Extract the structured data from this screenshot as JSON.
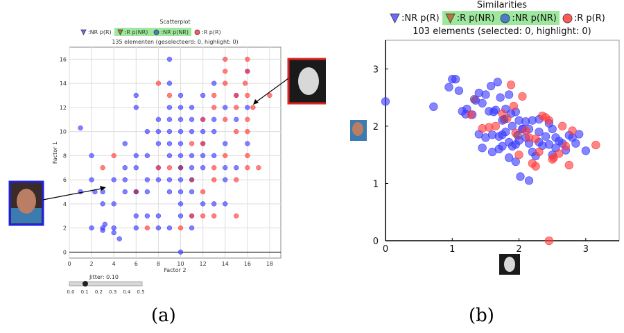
{
  "panels": {
    "a": {
      "caption": "(a)",
      "title": "Scatterplot",
      "subtitle": "135 elementen (geselecteerd: 0, highlight: 0)",
      "legend": [
        {
          "label": ":NR p(R)",
          "marker": "triangle-down",
          "color": "#6a6aff",
          "highlight": false
        },
        {
          "label": ":R p(NR)",
          "marker": "triangle-down",
          "color": "#b8773e",
          "highlight": true
        },
        {
          "label": ":NR p(NR)",
          "marker": "circle",
          "color": "#4c7cc8",
          "highlight": true
        },
        {
          "label": ":R p(R)",
          "marker": "circle",
          "color": "#ff5a5a",
          "highlight": false
        }
      ],
      "jitter_label": "Jitter: 0.10",
      "jitter_value": 0.1,
      "jitter_ticks": [
        "0.0",
        "0.1",
        "0.2",
        "0.3",
        "0.4",
        "0.5"
      ]
    },
    "b": {
      "caption": "(b)",
      "title": "Similarities",
      "subtitle": "103 elements (selected: 0, highlight: 0)",
      "legend": [
        {
          "label": ":NR p(R)",
          "marker": "triangle-down",
          "color": "#6a6aff",
          "highlight": false
        },
        {
          "label": ":R p(NR)",
          "marker": "triangle-down",
          "color": "#b8773e",
          "highlight": true
        },
        {
          "label": ":NR p(NR)",
          "marker": "circle",
          "color": "#4c7cc8",
          "highlight": true
        },
        {
          "label": ":R p(R)",
          "marker": "circle",
          "color": "#ff5a5a",
          "highlight": false
        }
      ]
    }
  },
  "colors": {
    "blue": "#3a3aff",
    "red": "#ff3a3a",
    "darkred": "#c03030",
    "purple": "#7a3a8a",
    "face_a_border": "#2222dd",
    "face_b_border": "#dd2222"
  },
  "chart_data": [
    {
      "type": "scatter",
      "title": "Scatterplot",
      "xlabel": "Factor 2",
      "ylabel": "Factor 1",
      "xlim": [
        0,
        19
      ],
      "ylim": [
        -0.5,
        17
      ],
      "xticks": [
        0,
        2,
        4,
        6,
        8,
        10,
        12,
        14,
        16,
        18
      ],
      "yticks": [
        0,
        2,
        4,
        6,
        8,
        10,
        12,
        14,
        16
      ],
      "grid": true,
      "series": [
        {
          "color": "blue",
          "points": [
            [
              1,
              10.3
            ],
            [
              1,
              5
            ],
            [
              2,
              8
            ],
            [
              2,
              6
            ],
            [
              2,
              2
            ],
            [
              2.3,
              5
            ],
            [
              3,
              5
            ],
            [
              3,
              4
            ],
            [
              3,
              2
            ],
            [
              3,
              1.8
            ],
            [
              3.2,
              2.3
            ],
            [
              4,
              6
            ],
            [
              4,
              4
            ],
            [
              4,
              2
            ],
            [
              4,
              1.6
            ],
            [
              4.5,
              1.1
            ],
            [
              5,
              9
            ],
            [
              5,
              7
            ],
            [
              5,
              6
            ],
            [
              5,
              5
            ],
            [
              6,
              13
            ],
            [
              6,
              12
            ],
            [
              6,
              8
            ],
            [
              6,
              7
            ],
            [
              6,
              5
            ],
            [
              6,
              3
            ],
            [
              6,
              2
            ],
            [
              7,
              10
            ],
            [
              7,
              8
            ],
            [
              7,
              6
            ],
            [
              7,
              5
            ],
            [
              7,
              3
            ],
            [
              8,
              11
            ],
            [
              8,
              10
            ],
            [
              8,
              9
            ],
            [
              8,
              7
            ],
            [
              8,
              6
            ],
            [
              8,
              3
            ],
            [
              8,
              2
            ],
            [
              9,
              16
            ],
            [
              9,
              14
            ],
            [
              9,
              12
            ],
            [
              9,
              11
            ],
            [
              9,
              10
            ],
            [
              9,
              9
            ],
            [
              9,
              8
            ],
            [
              9,
              6
            ],
            [
              9,
              5
            ],
            [
              9,
              2
            ],
            [
              10,
              13
            ],
            [
              10,
              12
            ],
            [
              10,
              11
            ],
            [
              10,
              10
            ],
            [
              10,
              9
            ],
            [
              10,
              8
            ],
            [
              10,
              7
            ],
            [
              10,
              6
            ],
            [
              10,
              5
            ],
            [
              10,
              4
            ],
            [
              10,
              3
            ],
            [
              10,
              0
            ],
            [
              11,
              12
            ],
            [
              11,
              11
            ],
            [
              11,
              10
            ],
            [
              11,
              8
            ],
            [
              11,
              7
            ],
            [
              11,
              5
            ],
            [
              11,
              3
            ],
            [
              11,
              2
            ],
            [
              12,
              13
            ],
            [
              12,
              11
            ],
            [
              12,
              10
            ],
            [
              12,
              9
            ],
            [
              12,
              8
            ],
            [
              12,
              7
            ],
            [
              12,
              4
            ],
            [
              13,
              14
            ],
            [
              13,
              11
            ],
            [
              13,
              10
            ],
            [
              13,
              8
            ],
            [
              13,
              4
            ],
            [
              14,
              12
            ],
            [
              14,
              9
            ],
            [
              14,
              7
            ],
            [
              14,
              6
            ],
            [
              14,
              4
            ],
            [
              15,
              13
            ],
            [
              15,
              11
            ],
            [
              15,
              7
            ],
            [
              16,
              15
            ],
            [
              16,
              12
            ],
            [
              16,
              9
            ]
          ]
        },
        {
          "color": "red",
          "points": [
            [
              3,
              7
            ],
            [
              4,
              8
            ],
            [
              6,
              5
            ],
            [
              7,
              2
            ],
            [
              8,
              14
            ],
            [
              8,
              7
            ],
            [
              9,
              13
            ],
            [
              9,
              7
            ],
            [
              10,
              7
            ],
            [
              10,
              2
            ],
            [
              11,
              9
            ],
            [
              11,
              6
            ],
            [
              11,
              3
            ],
            [
              12,
              11
            ],
            [
              12,
              9
            ],
            [
              12,
              5
            ],
            [
              12,
              3
            ],
            [
              13,
              13
            ],
            [
              13,
              12
            ],
            [
              13,
              7
            ],
            [
              13,
              6
            ],
            [
              13,
              3
            ],
            [
              14,
              16
            ],
            [
              14,
              15
            ],
            [
              14,
              14
            ],
            [
              14,
              11
            ],
            [
              14,
              8
            ],
            [
              15,
              13
            ],
            [
              15,
              12
            ],
            [
              15,
              10
            ],
            [
              15,
              6
            ],
            [
              15,
              3
            ],
            [
              15.8,
              14
            ],
            [
              16,
              16
            ],
            [
              16,
              15
            ],
            [
              16,
              13
            ],
            [
              16,
              11
            ],
            [
              16,
              10
            ],
            [
              16,
              8
            ],
            [
              16,
              7
            ],
            [
              16.5,
              12
            ],
            [
              17,
              7
            ],
            [
              18,
              13
            ]
          ]
        },
        {
          "color": "purple",
          "points": [
            [
              6,
              5
            ],
            [
              10,
              7
            ],
            [
              11,
              6
            ]
          ]
        }
      ]
    },
    {
      "type": "scatter",
      "title": "Similarities",
      "xlim": [
        0,
        3.5
      ],
      "ylim": [
        0,
        3.5
      ],
      "xticks": [
        0,
        1,
        2,
        3
      ],
      "yticks": [
        0,
        1,
        2,
        3
      ],
      "grid": false,
      "series": [
        {
          "color": "blue",
          "points": [
            [
              0,
              2.43
            ],
            [
              0.72,
              2.34
            ],
            [
              0.95,
              2.68
            ],
            [
              1.0,
              2.82
            ],
            [
              1.05,
              2.82
            ],
            [
              1.1,
              2.62
            ],
            [
              1.15,
              2.26
            ],
            [
              1.2,
              2.21
            ],
            [
              1.22,
              2.3
            ],
            [
              1.3,
              2.2
            ],
            [
              1.35,
              2.45
            ],
            [
              1.4,
              2.58
            ],
            [
              1.45,
              2.4
            ],
            [
              1.5,
              2.55
            ],
            [
              1.55,
              2.26
            ],
            [
              1.58,
              2.7
            ],
            [
              1.62,
              2.25
            ],
            [
              1.65,
              2.28
            ],
            [
              1.68,
              2.77
            ],
            [
              1.72,
              2.5
            ],
            [
              1.75,
              2.1
            ],
            [
              1.8,
              2.3
            ],
            [
              1.85,
              2.55
            ],
            [
              1.88,
              2.22
            ],
            [
              1.9,
              2.0
            ],
            [
              1.95,
              2.25
            ],
            [
              2.0,
              2.1
            ],
            [
              2.05,
              1.95
            ],
            [
              2.1,
              1.8
            ],
            [
              2.15,
              1.7
            ],
            [
              2.2,
              1.55
            ],
            [
              2.25,
              1.48
            ],
            [
              2.3,
              1.72
            ],
            [
              2.35,
              1.66
            ],
            [
              2.4,
              1.82
            ],
            [
              2.45,
              1.68
            ],
            [
              2.5,
              1.5
            ],
            [
              2.55,
              1.62
            ],
            [
              2.6,
              1.74
            ],
            [
              2.65,
              1.7
            ],
            [
              2.7,
              1.58
            ],
            [
              2.75,
              1.84
            ],
            [
              2.8,
              1.8
            ],
            [
              2.85,
              1.7
            ],
            [
              2.9,
              1.86
            ],
            [
              3.0,
              1.57
            ],
            [
              1.4,
              1.86
            ],
            [
              1.5,
              1.8
            ],
            [
              1.6,
              1.85
            ],
            [
              1.7,
              1.82
            ],
            [
              1.75,
              1.85
            ],
            [
              1.8,
              1.9
            ],
            [
              1.85,
              1.72
            ],
            [
              1.9,
              1.65
            ],
            [
              1.95,
              1.68
            ],
            [
              2.0,
              1.75
            ],
            [
              2.05,
              1.95
            ],
            [
              2.1,
              2.08
            ],
            [
              2.15,
              1.95
            ],
            [
              2.2,
              2.1
            ],
            [
              2.3,
              2.12
            ],
            [
              2.45,
              2.05
            ],
            [
              2.5,
              1.95
            ],
            [
              2.55,
              1.8
            ],
            [
              1.45,
              1.62
            ],
            [
              1.6,
              1.55
            ],
            [
              1.7,
              1.6
            ],
            [
              1.75,
              1.65
            ],
            [
              1.85,
              1.45
            ],
            [
              1.95,
              1.38
            ],
            [
              2.02,
              1.12
            ],
            [
              2.15,
              1.05
            ],
            [
              2.3,
              1.9
            ]
          ]
        },
        {
          "color": "red",
          "points": [
            [
              1.28,
              2.2
            ],
            [
              1.45,
              1.96
            ],
            [
              1.55,
              1.98
            ],
            [
              1.65,
              2.0
            ],
            [
              1.75,
              2.22
            ],
            [
              1.82,
              2.13
            ],
            [
              1.88,
              2.72
            ],
            [
              1.92,
              2.35
            ],
            [
              2.05,
              2.52
            ],
            [
              2.1,
              1.92
            ],
            [
              2.15,
              1.8
            ],
            [
              2.2,
              1.35
            ],
            [
              2.25,
              1.3
            ],
            [
              2.3,
              1.55
            ],
            [
              2.35,
              2.18
            ],
            [
              2.4,
              2.15
            ],
            [
              2.45,
              2.1
            ],
            [
              2.5,
              1.42
            ],
            [
              2.52,
              1.45
            ],
            [
              2.6,
              1.52
            ],
            [
              2.65,
              2.0
            ],
            [
              2.7,
              1.65
            ],
            [
              2.75,
              1.32
            ],
            [
              2.8,
              1.92
            ],
            [
              3.15,
              1.67
            ],
            [
              2.45,
              0.0
            ],
            [
              1.95,
              1.88
            ],
            [
              2.0,
              1.5
            ],
            [
              2.25,
              1.78
            ]
          ]
        },
        {
          "color": "purple",
          "points": [
            [
              1.33,
              2.47
            ],
            [
              1.78,
              2.12
            ],
            [
              1.98,
              1.84
            ]
          ]
        }
      ]
    }
  ]
}
